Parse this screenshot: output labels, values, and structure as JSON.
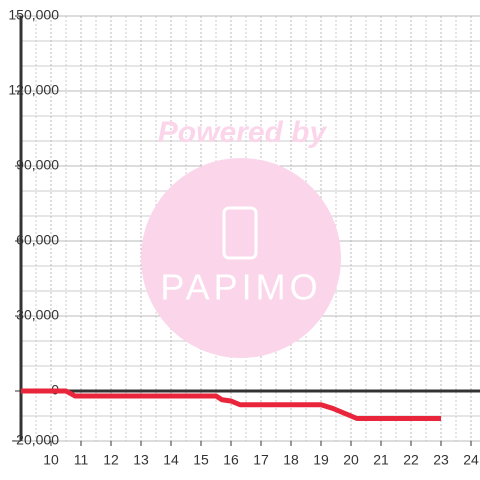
{
  "chart_data": {
    "type": "line",
    "x": [
      9,
      10.5,
      10.8,
      15.5,
      15.7,
      16.0,
      16.3,
      19.0,
      19.4,
      19.8,
      20.2,
      23
    ],
    "series": [
      {
        "color": "#e8253a",
        "values": [
          0,
          0,
          -2000,
          -2000,
          -3500,
          -4000,
          -5500,
          -5500,
          -7000,
          -9000,
          -11000,
          -11000
        ]
      }
    ],
    "xlim": [
      9,
      24.3
    ],
    "xticks": [
      10,
      11,
      12,
      13,
      14,
      15,
      16,
      17,
      18,
      19,
      20,
      21,
      22,
      23,
      24
    ],
    "x_minor_ticks": [
      9.5,
      10.5,
      11.5,
      12.5,
      13.5,
      14.5,
      15.5,
      16.5,
      17.5,
      18.5,
      19.5,
      20.5,
      21.5,
      22.5,
      23.5
    ],
    "ylim": [
      -20000,
      150000
    ],
    "yticks": [
      {
        "value": -20000,
        "label": "-20,000"
      },
      0,
      {
        "value": 30000,
        "label": "30,000"
      },
      {
        "value": 60000,
        "label": "60,000"
      },
      {
        "value": 90000,
        "label": "90,000"
      },
      {
        "value": 120000,
        "label": "120,000"
      },
      {
        "value": 150000,
        "label": "150,000"
      }
    ],
    "y_minor_ticks": [
      -10000,
      10000,
      20000,
      40000,
      50000,
      70000,
      80000,
      100000,
      110000,
      130000,
      140000
    ],
    "grid": true,
    "watermark": {
      "line1": "Powered by",
      "line2": "PAPIMO"
    }
  }
}
